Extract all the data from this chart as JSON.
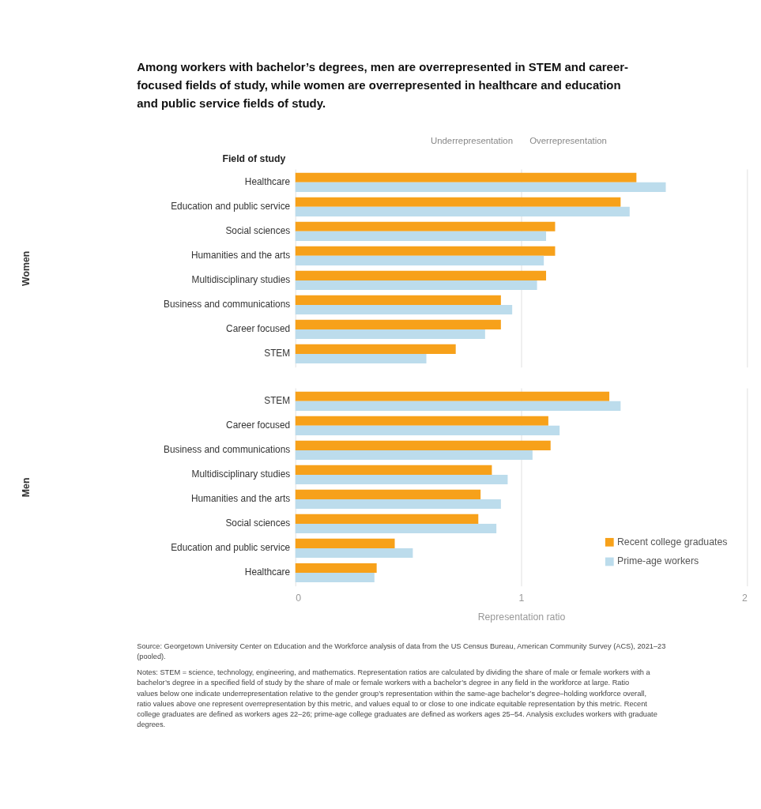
{
  "chart_data": [
    {
      "type": "bar",
      "orientation": "horizontal",
      "title": "Among workers with bachelor’s degrees, men are overrepresented in STEM and career-focused fields of study, while women are overrepresented in healthcare and education and public service fields of study.",
      "ylabel": "Women",
      "annotations": [
        "Field of study",
        "Underrepresentation",
        "Overrepresentation"
      ],
      "categories": [
        "Healthcare",
        "Education and public service",
        "Social sciences",
        "Humanities and the arts",
        "Multidisciplinary studies",
        "Business and communications",
        "Career focused",
        "STEM"
      ],
      "series": [
        {
          "color": "#f7a11a",
          "values": [
            1.51,
            1.44,
            1.15,
            1.15,
            1.11,
            0.91,
            0.91,
            0.71
          ]
        },
        {
          "color": "#bcdcec",
          "values": [
            1.64,
            1.48,
            1.11,
            1.1,
            1.07,
            0.96,
            0.84,
            0.58
          ]
        }
      ],
      "xlim": [
        0,
        2
      ],
      "xticks": [
        0,
        1,
        2
      ],
      "grid": "x",
      "tick_labels": "y"
    },
    {
      "type": "bar",
      "orientation": "horizontal",
      "ylabel": "Men",
      "xlabel": "Representation ratio",
      "legend": "bottom right",
      "annotations": [
        "Source: Georgetown University Center on Education and the Workforce analysis of data from the US Census Bureau, American Community Survey (ACS), 2021–23 (pooled).",
        "Notes: STEM = science, technology, engineering, and mathematics. Representation ratios are calculated by dividing the share of male or female workers with a bachelor’s degree in a specified field of study by the share of male or female workers with a bachelor’s degree in any field in the workforce at large. Ratio values below one indicate underrepresentation relative to the gender group’s representation within the same-age bachelor’s degree–holding workforce overall, ratio values above one represent overrepresentation by this metric, and values equal to or close to one indicate equitable representation by this metric. Recent college graduates are defined as workers ages 22–26; prime-age college graduates are defined as workers ages 25–54. Analysis excludes workers with graduate degrees."
      ],
      "categories": [
        "STEM",
        "Career focused",
        "Business and communications",
        "Multidisciplinary studies",
        "Humanities and the arts",
        "Social sciences",
        "Education and public service",
        "Healthcare"
      ],
      "series": [
        {
          "name": "Recent college graduates",
          "color": "#f7a11a",
          "values": [
            1.39,
            1.12,
            1.13,
            0.87,
            0.82,
            0.81,
            0.44,
            0.36
          ]
        },
        {
          "name": "Prime-age workers",
          "color": "#bcdcec",
          "values": [
            1.44,
            1.17,
            1.05,
            0.94,
            0.91,
            0.89,
            0.52,
            0.35
          ]
        }
      ],
      "xlim": [
        0,
        2
      ],
      "xticks": [
        0,
        1,
        2
      ],
      "grid": "x"
    }
  ]
}
